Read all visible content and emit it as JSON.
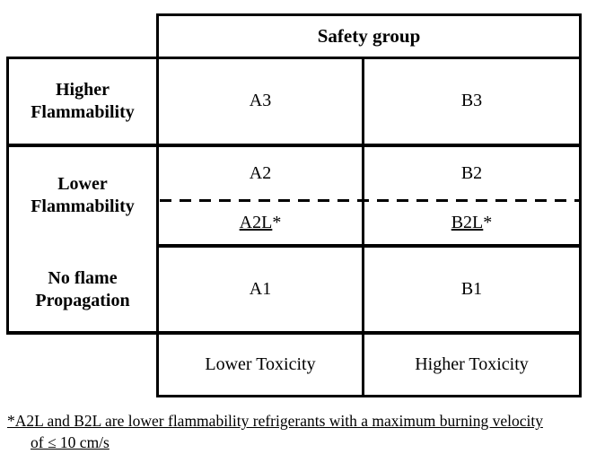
{
  "table": {
    "header_label": "Safety group",
    "flammability_labels": {
      "higher_line1": "Higher",
      "higher_line2": "Flammability",
      "lower_line1": "Lower",
      "lower_line2": "Flammability",
      "noflame_line1": "No flame",
      "noflame_line2": "Propagation"
    },
    "cells": {
      "a3": "A3",
      "b3": "B3",
      "a2": "A2",
      "b2": "B2",
      "a2l": "A2L",
      "b2l": "B2L",
      "footnote_marker": "*",
      "a1": "A1",
      "b1": "B1"
    },
    "toxicity_labels": {
      "lower": "Lower Toxicity",
      "higher": "Higher Toxicity"
    }
  },
  "footnote": {
    "line1": "*A2L and B2L are lower flammability refrigerants with a maximum burning velocity",
    "line2": "of ≤ 10 cm/s"
  },
  "colors": {
    "border": "#000000",
    "text": "#000000",
    "background": "#ffffff"
  }
}
